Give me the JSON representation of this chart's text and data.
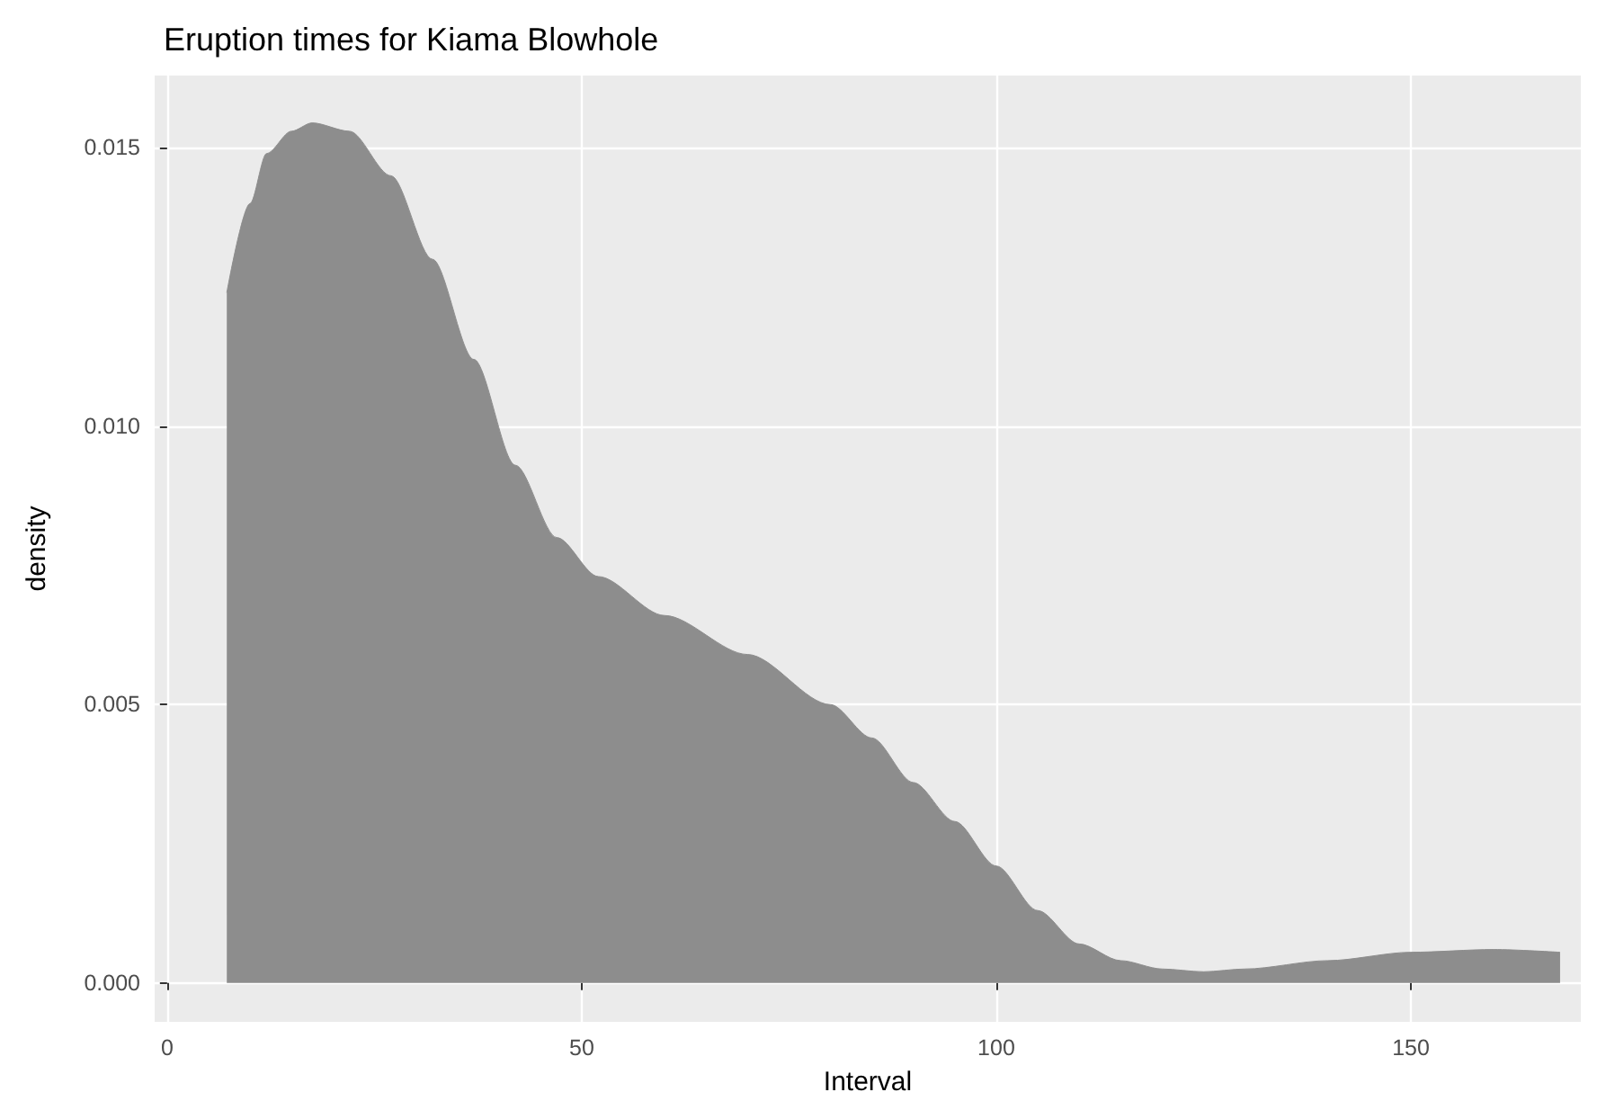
{
  "chart_data": {
    "type": "area",
    "title": "Eruption times for Kiama Blowhole",
    "xlabel": "Interval",
    "ylabel": "density",
    "x": [
      7.2,
      10,
      12,
      15,
      17.5,
      22,
      27,
      32,
      37,
      42,
      47,
      52,
      60,
      70,
      80,
      85,
      90,
      95,
      100,
      105,
      110,
      115,
      120,
      125,
      130,
      140,
      150,
      160,
      168
    ],
    "series": [
      {
        "color": "#8d8d8d",
        "values": [
          0.0124,
          0.014,
          0.0149,
          0.0153,
          0.01545,
          0.0153,
          0.0145,
          0.013,
          0.0112,
          0.0093,
          0.008,
          0.0073,
          0.0066,
          0.0059,
          0.005,
          0.0044,
          0.0036,
          0.0029,
          0.0021,
          0.0013,
          0.0007,
          0.0004,
          0.00025,
          0.0002,
          0.00025,
          0.0004,
          0.00055,
          0.0006,
          0.00055
        ]
      }
    ],
    "xlim": [
      -1.5,
      170.5
    ],
    "ylim": [
      -0.0007,
      0.0163
    ],
    "xticks": [
      0,
      50,
      100,
      150
    ],
    "yticks": [
      {
        "value": 0,
        "label": "0.000"
      },
      {
        "value": 0.005,
        "label": "0.005"
      },
      {
        "value": 0.01,
        "label": "0.010"
      },
      {
        "value": 0.015,
        "label": "0.015"
      }
    ],
    "grid": true
  }
}
